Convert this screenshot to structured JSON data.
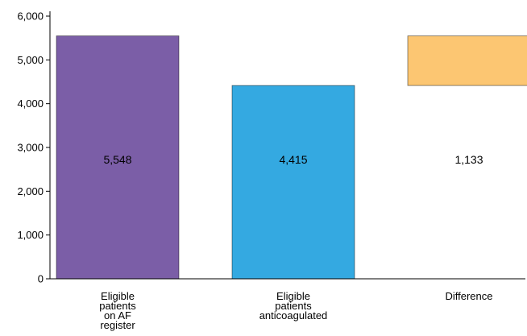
{
  "chart_data": {
    "type": "bar",
    "subtype": "waterfall",
    "title": "",
    "xlabel": "",
    "ylabel": "",
    "ylim": [
      0,
      6000
    ],
    "yticks": [
      0,
      1000,
      2000,
      3000,
      4000,
      5000,
      6000
    ],
    "ytick_labels": [
      "0",
      "1,000",
      "2,000",
      "3,000",
      "4,000",
      "5,000",
      "6,000"
    ],
    "grid": false,
    "legend": "none",
    "bars": [
      {
        "category_lines": [
          "Eligible",
          "patients",
          "on AF",
          "register"
        ],
        "start": 0,
        "end": 5548,
        "label": "5,548",
        "color": "#7b5ea7"
      },
      {
        "category_lines": [
          "Eligible",
          "patients",
          "anticoagulated"
        ],
        "start": 0,
        "end": 4415,
        "label": "4,415",
        "color": "#34a9e1"
      },
      {
        "category_lines": [
          "Difference"
        ],
        "start": 4415,
        "end": 5548,
        "label": "1,133",
        "color": "#fcc672"
      }
    ]
  }
}
